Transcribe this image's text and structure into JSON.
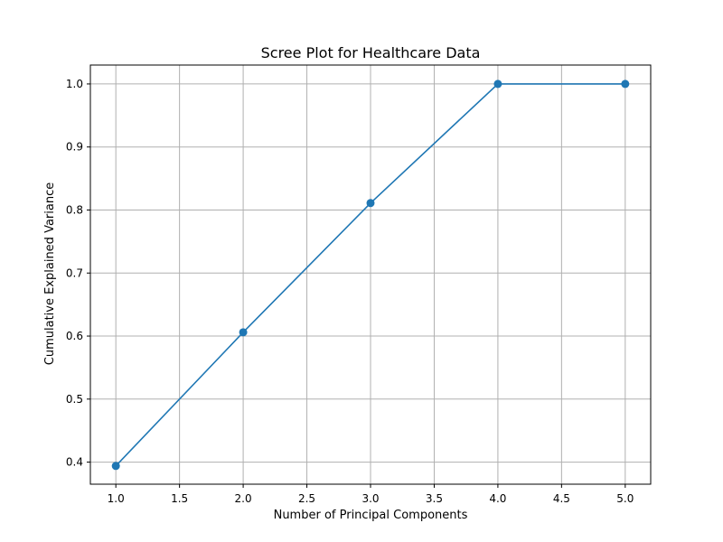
{
  "chart_data": {
    "type": "line",
    "title": "Scree Plot for Healthcare Data",
    "xlabel": "Number of Principal Components",
    "ylabel": "Cumulative Explained Variance",
    "x": [
      1,
      2,
      3,
      4,
      5
    ],
    "series": [
      {
        "values": [
          0.394,
          0.606,
          0.811,
          1.0,
          1.0
        ]
      }
    ],
    "xlim": [
      0.8,
      5.2
    ],
    "ylim": [
      0.365,
      1.03
    ],
    "xticks": [
      1.0,
      1.5,
      2.0,
      2.5,
      3.0,
      3.5,
      4.0,
      4.5,
      5.0
    ],
    "xtick_labels": [
      "1.0",
      "1.5",
      "2.0",
      "2.5",
      "3.0",
      "3.5",
      "4.0",
      "4.5",
      "5.0"
    ],
    "yticks": [
      0.4,
      0.5,
      0.6,
      0.7,
      0.8,
      0.9,
      1.0
    ],
    "ytick_labels": [
      "0.4",
      "0.5",
      "0.6",
      "0.7",
      "0.8",
      "0.9",
      "1.0"
    ],
    "grid": true,
    "marker": "circle",
    "line_color": "#1f77b4",
    "grid_color": "#b0b0b0"
  }
}
